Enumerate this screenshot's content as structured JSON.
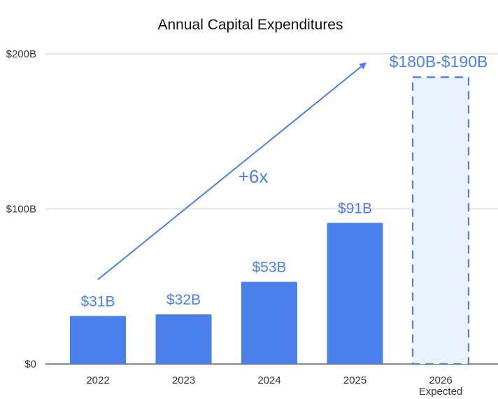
{
  "chart_data": {
    "type": "bar",
    "title": "Annual Capital Expenditures",
    "xlabel": "",
    "ylabel": "",
    "ylim": [
      0,
      200
    ],
    "y_ticks": [
      {
        "value": 0,
        "label": "$0"
      },
      {
        "value": 100,
        "label": "$100B"
      },
      {
        "value": 200,
        "label": "$200B"
      }
    ],
    "categories": [
      "2022",
      "2023",
      "2024",
      "2025",
      "2026"
    ],
    "category_sublabels": [
      "",
      "",
      "",
      "",
      "Expected"
    ],
    "values": [
      31,
      32,
      53,
      91,
      185
    ],
    "value_labels": [
      "$31B",
      "$32B",
      "$53B",
      "$91B",
      "$180B-$190B"
    ],
    "projected": [
      false,
      false,
      false,
      false,
      true
    ],
    "projected_range": [
      180,
      190
    ],
    "grid": true,
    "annotation": {
      "text": "+6x",
      "type": "arrow",
      "from_category": "2022",
      "to_category": "2026"
    },
    "colors": {
      "bar": "#4a7fec",
      "projected_fill": "#e8f1fc",
      "projected_border": "#4a7fec",
      "label": "#4a7fec",
      "grid": "#c8c8c8",
      "axis": "#444444"
    }
  }
}
